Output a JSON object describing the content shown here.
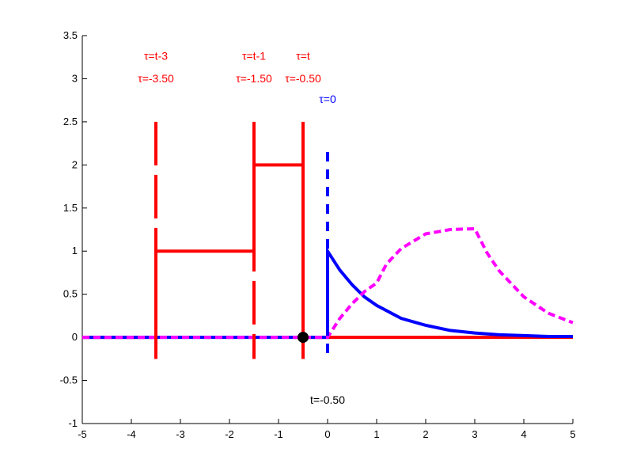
{
  "chart_data": {
    "type": "line",
    "title": "",
    "xlabel": "",
    "ylabel": "",
    "xlim": [
      -5,
      5
    ],
    "ylim": [
      -1,
      3.5
    ],
    "grid": false,
    "x_ticks": [
      -5,
      -4,
      -3,
      -2,
      -1,
      0,
      1,
      2,
      3,
      4,
      5
    ],
    "x_tick_labels": [
      "-5",
      "-4",
      "-3",
      "-2",
      "-1",
      "0",
      "1",
      "2",
      "3",
      "4",
      "5"
    ],
    "y_ticks": [
      -1,
      -0.5,
      0,
      0.5,
      1,
      1.5,
      2,
      2.5,
      3,
      3.5
    ],
    "y_tick_labels": [
      "-1",
      "-0.5",
      "0",
      "0.5",
      "1",
      "1.5",
      "2",
      "2.5",
      "3",
      "3.5"
    ],
    "series": [
      {
        "key": "flipped_shifted_input",
        "color": "#ff0000",
        "style": "solid",
        "points": [
          [
            -5,
            0
          ],
          [
            -3.5,
            0
          ],
          [
            -3.5,
            1
          ],
          [
            -1.5,
            1
          ],
          [
            -1.5,
            2
          ],
          [
            -0.5,
            2
          ],
          [
            -0.5,
            0
          ],
          [
            5,
            0
          ]
        ]
      },
      {
        "key": "impulse_response",
        "color": "#0000ff",
        "style": "solid",
        "points": [
          [
            -5,
            0
          ],
          [
            0,
            0
          ],
          [
            0,
            1
          ],
          [
            0.25,
            0.78
          ],
          [
            0.5,
            0.61
          ],
          [
            0.75,
            0.47
          ],
          [
            1,
            0.37
          ],
          [
            1.5,
            0.22
          ],
          [
            2,
            0.14
          ],
          [
            2.5,
            0.08
          ],
          [
            3,
            0.05
          ],
          [
            3.5,
            0.03
          ],
          [
            4,
            0.02
          ],
          [
            4.5,
            0.01
          ],
          [
            5,
            0.01
          ]
        ]
      },
      {
        "key": "convolution_output",
        "color": "#ff00ff",
        "style": "dashed",
        "points": [
          [
            -5,
            0
          ],
          [
            0,
            0
          ],
          [
            0.25,
            0.22
          ],
          [
            0.5,
            0.39
          ],
          [
            0.75,
            0.53
          ],
          [
            1,
            0.63
          ],
          [
            1.2,
            0.85
          ],
          [
            1.5,
            1.03
          ],
          [
            2,
            1.2
          ],
          [
            2.5,
            1.25
          ],
          [
            3,
            1.26
          ],
          [
            3.25,
            0.98
          ],
          [
            3.5,
            0.77
          ],
          [
            4,
            0.47
          ],
          [
            4.5,
            0.28
          ],
          [
            5,
            0.17
          ]
        ]
      }
    ],
    "markers": [
      {
        "key": "tau_t_marker",
        "x": -0.5,
        "y": 0,
        "color": "#000000"
      }
    ],
    "vertical_markers": [
      {
        "key": "tau_t_minus_3",
        "x": -3.5,
        "color": "#ff0000",
        "label_line1": "τ=t-3",
        "label_line2": "τ=-3.50"
      },
      {
        "key": "tau_t_minus_1",
        "x": -1.5,
        "color": "#ff0000",
        "label_line1": "τ=t-1",
        "label_line2": "τ=-1.50"
      },
      {
        "key": "tau_t",
        "x": -0.5,
        "color": "#ff0000",
        "label_line1": "τ=t",
        "label_line2": "τ=-0.50"
      },
      {
        "key": "tau_zero",
        "x": 0,
        "color": "#0000ff",
        "label_line1": "τ=0",
        "label_line2": ""
      }
    ],
    "annotations": [
      {
        "key": "time_readout",
        "text": "t=-0.50",
        "x": 0,
        "y": -0.77,
        "color": "#000000"
      }
    ]
  }
}
